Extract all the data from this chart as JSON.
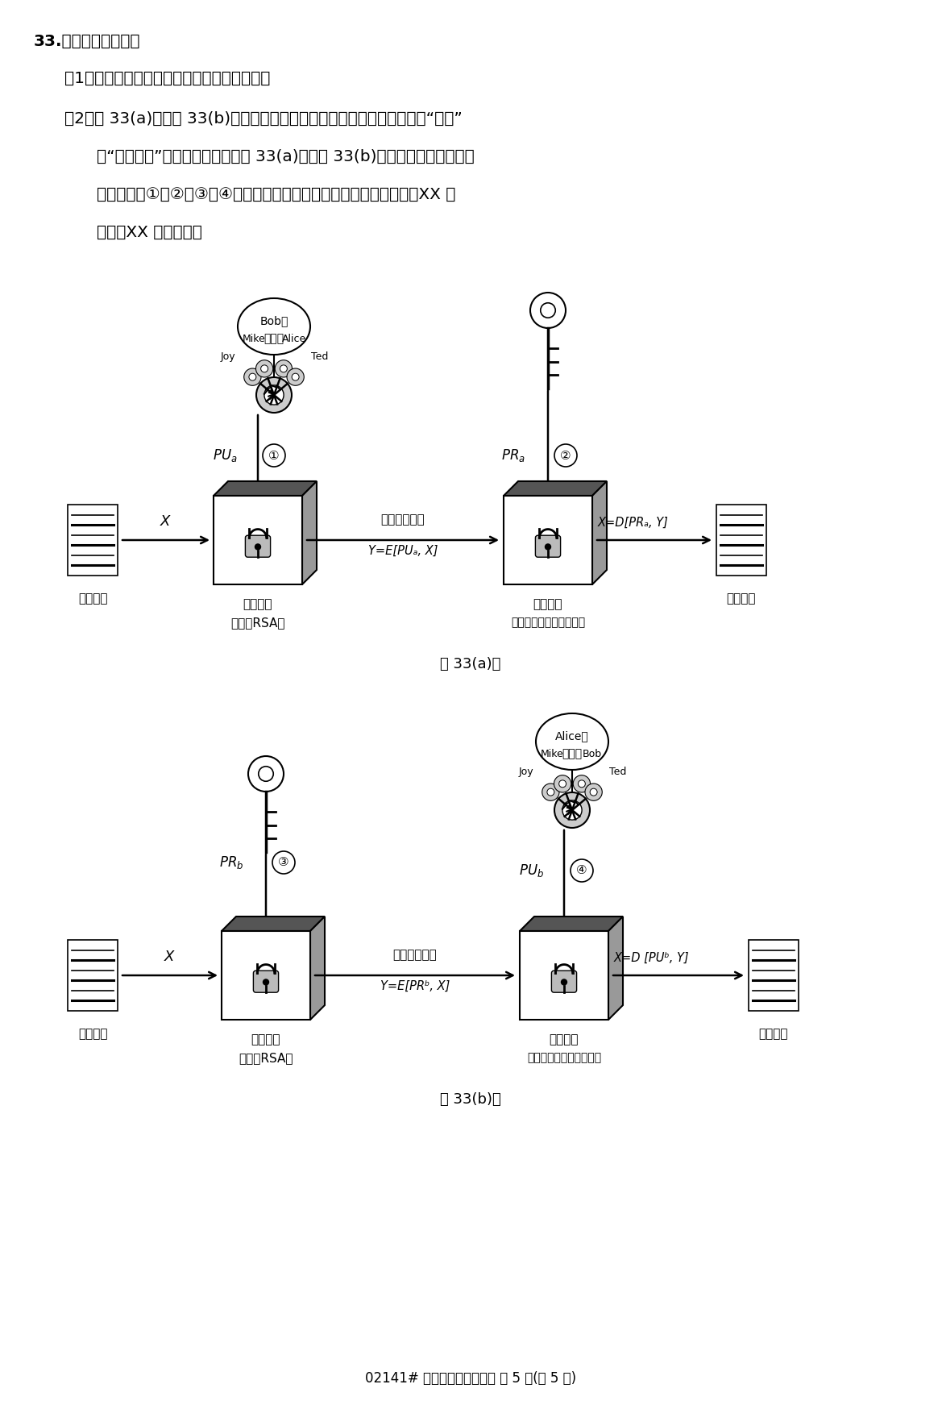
{
  "title": "33.请回答下面问题：",
  "q1": "（1）非对称密鑰密码体制的主要特点是什么？",
  "q2_line1": "（2）题 33(a)图、题 33(b)图是非对称密鑰密码体制产生的两个主要应用“加密”",
  "q2_line2": "和“数字签名”的示意图。请写出题 33(a)图、题 33(b)图分别对应哪个应用，",
  "q2_line3": "并写出图中①、②、③、④处的密鑰所属的用户名和密鑰类型（例如：XX 的",
  "q2_line4": "公鑰、XX 的私鑰）。",
  "fig_a_caption": "题 33(a)图",
  "fig_b_caption": "题 33(b)图",
  "footer": "02141# 计算机网络技术试题 第 5 页(共 5 页)",
  "diagram_a": {
    "keyring_label": "Bob的\n公鑰环",
    "key_labels": [
      "Joy",
      "Mike",
      "Alice",
      "Ted"
    ],
    "input_label": "明文输入",
    "encrypt_label1": "加密算法",
    "encrypt_label2": "（例如RSA）",
    "decrypt_label1": "解密算法",
    "decrypt_label2": "（加密算法的逆向执行）",
    "output_label": "明文输出",
    "cipher_label": "被传输的密文",
    "cipher_formula": "Y=E[PUₐ, X]",
    "decrypt_formula": "X=D[PRₐ, Y]",
    "key1_label": "PUₐ",
    "key2_label": "PRₐ"
  },
  "diagram_b": {
    "keyring_label": "Alice的\n公鑰环",
    "key_labels": [
      "Joy",
      "Mike",
      "Bob",
      "Ted"
    ],
    "input_label": "明文输入",
    "encrypt_label1": "加密算法",
    "encrypt_label2": "（例如RSA）",
    "decrypt_label1": "解密算法",
    "decrypt_label2": "（加密算法的逆向执行）",
    "output_label": "明文输出",
    "cipher_label": "被传输的密文",
    "cipher_formula": "Y=E[PRᵇ, X]",
    "decrypt_formula": "X=D [PUᵇ, Y]",
    "key1_label": "PRᵇ",
    "key2_label": "PUᵇ"
  },
  "bg_color": "#ffffff",
  "text_color": "#000000"
}
